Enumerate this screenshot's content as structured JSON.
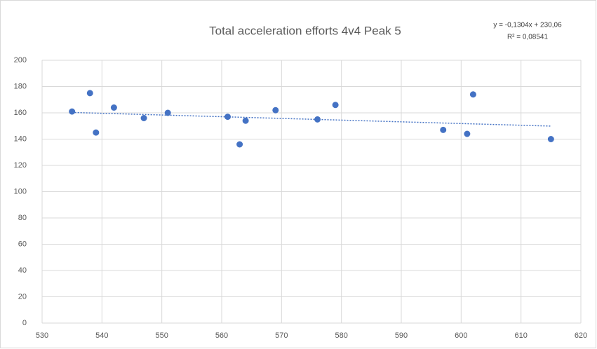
{
  "chart_data": {
    "type": "scatter",
    "title": "Total acceleration efforts 4v4 Peak 5",
    "annotations": [
      "y = -0,1304x + 230,06",
      "R² = 0,08541"
    ],
    "series": [
      {
        "color": "#4472c4",
        "x": [
          535,
          538,
          539,
          542,
          547,
          551,
          561,
          563,
          564,
          569,
          576,
          579,
          597,
          601,
          602,
          615
        ],
        "values": [
          161,
          175,
          145,
          164,
          156,
          160,
          157,
          136,
          154,
          162,
          155,
          166,
          147,
          144,
          174,
          140
        ]
      }
    ],
    "trendline": {
      "color": "#4472c4",
      "x": [
        535,
        615
      ],
      "values": [
        160.3,
        149.9
      ]
    },
    "xlim": [
      530,
      620
    ],
    "xticks": [
      530,
      540,
      550,
      560,
      570,
      580,
      590,
      600,
      610,
      620
    ],
    "ylim": [
      0,
      200
    ],
    "yticks": [
      0,
      20,
      40,
      60,
      80,
      100,
      120,
      140,
      160,
      180,
      200
    ],
    "grid": true
  }
}
